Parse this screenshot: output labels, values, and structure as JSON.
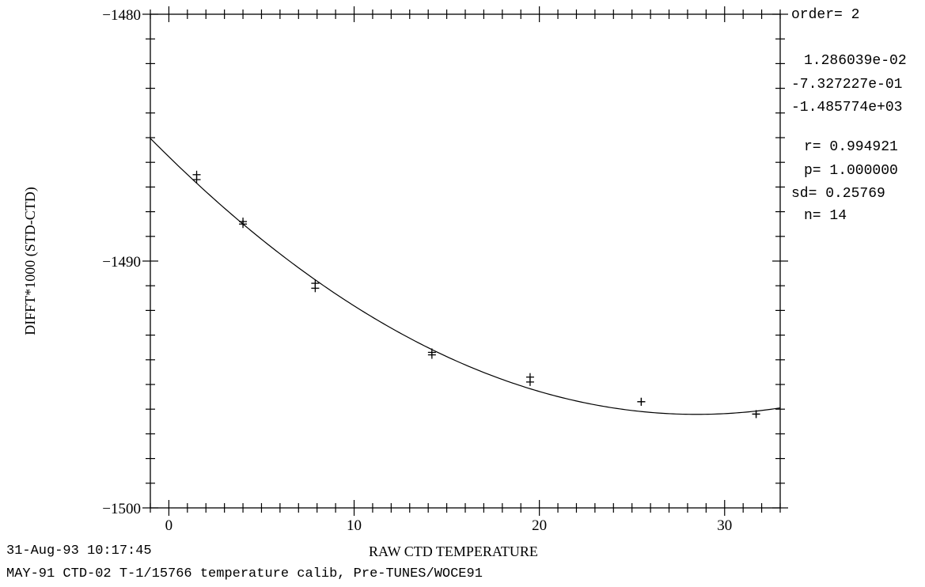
{
  "chart_data": {
    "type": "scatter",
    "title": "",
    "xlabel": "RAW CTD TEMPERATURE",
    "ylabel": "DIFFT*1000 (STD-CTD)",
    "xlim": [
      -1,
      33
    ],
    "ylim": [
      -1500,
      -1480
    ],
    "x_ticks": [
      0,
      10,
      20,
      30
    ],
    "y_ticks": [
      -1500,
      -1490,
      -1480
    ],
    "grid": false,
    "points": {
      "x": [
        1.5,
        1.5,
        4.0,
        4.0,
        7.9,
        7.9,
        14.2,
        14.2,
        19.5,
        19.5,
        25.5,
        25.5,
        31.7,
        31.7
      ],
      "y": [
        -1486.5,
        -1486.7,
        -1488.4,
        -1488.5,
        -1490.9,
        -1491.1,
        -1493.7,
        -1493.8,
        -1494.7,
        -1494.9,
        -1495.7,
        -1495.7,
        -1496.2,
        -1496.2
      ]
    },
    "fit_curve": {
      "order": 2,
      "coefficients": [
        0.01286039,
        -0.7327227,
        -1485.774
      ]
    }
  },
  "stats": {
    "order_label": "order= 2",
    "coef_1": "1.286039e-02",
    "coef_2": "-7.327227e-01",
    "coef_3": "-1.485774e+03",
    "r": "r= 0.994921",
    "p": "p= 1.000000",
    "sd": "sd= 0.25769",
    "n": "n= 14"
  },
  "footer": {
    "timestamp": "31-Aug-93 10:17:45",
    "description": "MAY-91 CTD-02 T-1/15766 temperature calib, Pre-TUNES/WOCE91"
  }
}
